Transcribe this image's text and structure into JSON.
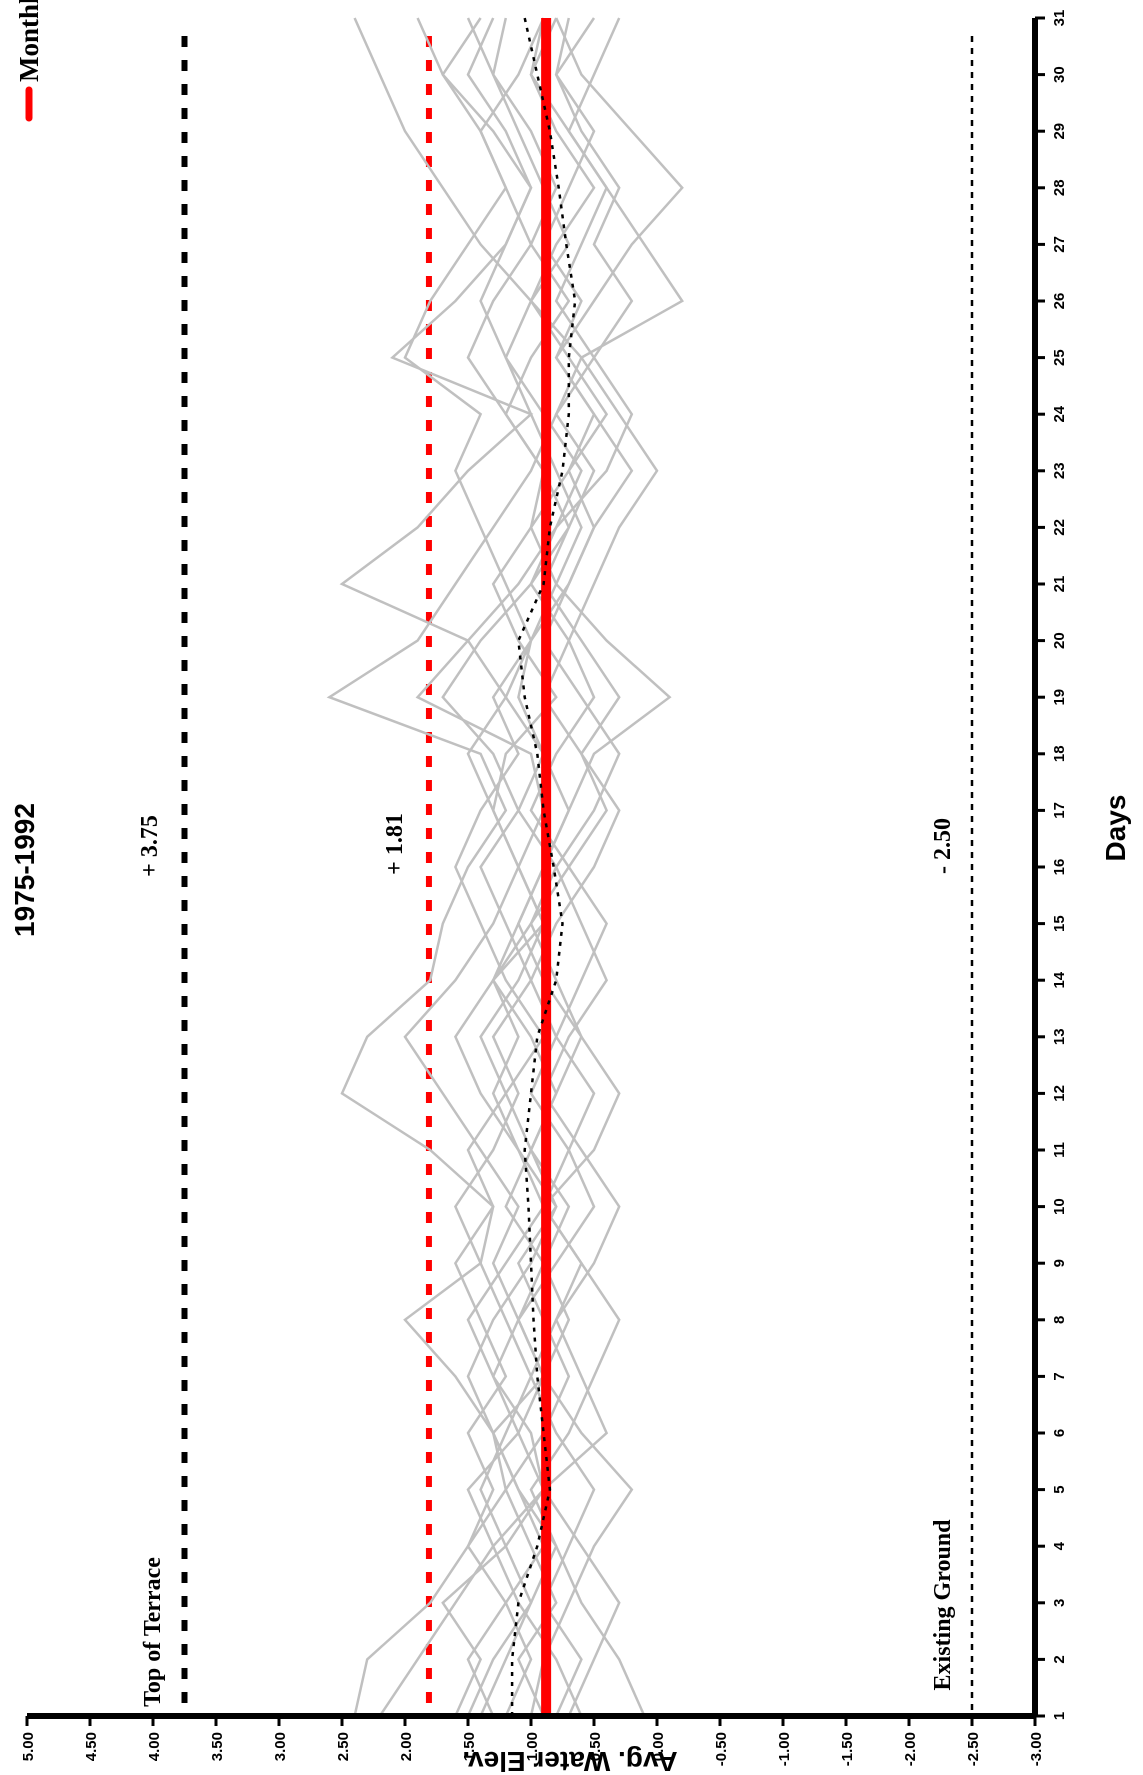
{
  "chart_data": {
    "type": "line",
    "title": "1975-1992",
    "xlabel": "Days",
    "ylabel": "Avg. Water Elev.",
    "x": [
      1,
      2,
      3,
      4,
      5,
      6,
      7,
      8,
      9,
      10,
      11,
      12,
      13,
      14,
      15,
      16,
      17,
      18,
      19,
      20,
      21,
      22,
      23,
      24,
      25,
      26,
      27,
      28,
      29,
      30,
      31
    ],
    "ylim": [
      -3.0,
      5.0
    ],
    "xlim": [
      1,
      31
    ],
    "y_ticks": [
      "5.00",
      "4.50",
      "4.00",
      "3.50",
      "3.00",
      "2.50",
      "2.00",
      "1.50",
      "1.00",
      "0.50",
      "0.00",
      "-0.50",
      "-1.00",
      "-1.50",
      "-2.00",
      "-2.50",
      "-3.00"
    ],
    "x_ticks": [
      "1",
      "2",
      "3",
      "4",
      "5",
      "6",
      "7",
      "8",
      "9",
      "10",
      "11",
      "12",
      "13",
      "14",
      "15",
      "16",
      "17",
      "18",
      "19",
      "20",
      "21",
      "22",
      "23",
      "24",
      "25",
      "26",
      "27",
      "28",
      "29",
      "30",
      "31"
    ],
    "grid": false,
    "legend": "top-right",
    "series": [
      {
        "name": "Monthly Average",
        "color": "#ff0000",
        "style": "solid-thick",
        "values": [
          0.88,
          0.88,
          0.88,
          0.88,
          0.88,
          0.88,
          0.88,
          0.88,
          0.88,
          0.88,
          0.88,
          0.88,
          0.88,
          0.88,
          0.88,
          0.88,
          0.88,
          0.88,
          0.88,
          0.88,
          0.88,
          0.88,
          0.88,
          0.88,
          0.88,
          0.88,
          0.88,
          0.88,
          0.88,
          0.88,
          0.88
        ]
      },
      {
        "color": "#000000",
        "style": "dotted",
        "values": [
          1.15,
          1.15,
          1.1,
          0.95,
          0.85,
          0.9,
          0.95,
          0.98,
          1.0,
          1.02,
          1.05,
          1.0,
          0.95,
          0.8,
          0.75,
          0.82,
          0.9,
          0.95,
          1.05,
          1.1,
          0.9,
          0.85,
          0.75,
          0.7,
          0.7,
          0.65,
          0.72,
          0.78,
          0.85,
          0.95,
          1.05
        ]
      },
      {
        "color": "#c0c0c0",
        "values": [
          2.4,
          2.3,
          1.8,
          1.5,
          1.2,
          1.3,
          1.6,
          2.0,
          1.4,
          1.3,
          1.8,
          2.5,
          2.3,
          1.8,
          1.7,
          1.5,
          1.2,
          1.4,
          2.6,
          1.9,
          1.6,
          1.3,
          1.0,
          0.8,
          0.6,
          1.0,
          1.4,
          1.7,
          2.0,
          2.2,
          2.4
        ]
      },
      {
        "color": "#c0c0c0",
        "values": [
          2.2,
          1.9,
          1.6,
          1.3,
          1.5,
          1.1,
          0.9,
          1.1,
          1.3,
          1.1,
          1.4,
          1.7,
          2.0,
          1.6,
          1.3,
          1.1,
          0.9,
          1.0,
          1.9,
          1.5,
          2.5,
          1.9,
          1.5,
          1.0,
          2.1,
          1.6,
          1.2,
          1.0,
          1.3,
          1.7,
          1.9
        ]
      },
      {
        "color": "#c0c0c0",
        "values": [
          1.6,
          1.4,
          1.7,
          1.2,
          0.9,
          1.0,
          1.3,
          1.5,
          1.2,
          0.9,
          1.1,
          1.4,
          1.6,
          1.3,
          1.0,
          0.8,
          1.1,
          1.3,
          1.7,
          1.4,
          1.0,
          0.7,
          0.9,
          1.2,
          1.5,
          1.3,
          1.0,
          0.8,
          1.0,
          1.3,
          1.5
        ]
      },
      {
        "color": "#c0c0c0",
        "values": [
          1.4,
          1.2,
          1.0,
          0.8,
          1.1,
          1.3,
          0.9,
          0.7,
          0.9,
          1.2,
          1.0,
          0.8,
          1.0,
          1.3,
          1.1,
          0.9,
          0.7,
          0.9,
          1.2,
          1.5,
          1.1,
          0.8,
          0.6,
          0.9,
          1.2,
          1.0,
          0.7,
          0.9,
          1.1,
          1.3,
          1.2
        ]
      },
      {
        "color": "#c0c0c0",
        "values": [
          1.0,
          0.9,
          0.7,
          0.5,
          0.2,
          0.6,
          0.9,
          1.1,
          0.8,
          0.5,
          0.7,
          1.0,
          0.8,
          0.6,
          0.4,
          0.7,
          1.0,
          0.8,
          0.5,
          0.7,
          1.0,
          0.8,
          0.4,
          0.2,
          0.5,
          0.8,
          0.6,
          0.4,
          0.7,
          1.0,
          0.9
        ]
      },
      {
        "color": "#c0c0c0",
        "values": [
          0.7,
          0.5,
          0.3,
          0.6,
          0.9,
          0.4,
          0.6,
          0.8,
          0.5,
          0.3,
          0.6,
          0.9,
          0.7,
          0.4,
          0.6,
          0.8,
          0.5,
          0.3,
          0.6,
          0.9,
          0.7,
          0.5,
          0.2,
          0.5,
          0.8,
          0.6,
          0.9,
          0.7,
          0.5,
          0.8,
          0.7
        ]
      },
      {
        "color": "#c0c0c0",
        "values": [
          0.1,
          0.3,
          0.6,
          0.8,
          1.0,
          0.7,
          0.5,
          0.3,
          0.6,
          0.9,
          0.5,
          0.3,
          0.6,
          0.8,
          1.0,
          0.7,
          0.4,
          0.6,
          0.3,
          0.6,
          0.9,
          0.7,
          0.5,
          0.8,
          0.5,
          0.2,
          0.5,
          0.3,
          0.6,
          0.8,
          0.5
        ]
      },
      {
        "color": "#c0c0c0",
        "values": [
          0.6,
          0.8,
          1.1,
          1.3,
          0.9,
          1.1,
          1.3,
          1.1,
          0.9,
          0.7,
          1.0,
          1.2,
          1.4,
          1.1,
          0.9,
          1.1,
          1.3,
          1.2,
          0.8,
          1.1,
          1.3,
          1.0,
          0.9,
          1.2,
          1.0,
          0.7,
          1.0,
          1.2,
          1.4,
          1.1,
          0.9
        ]
      },
      {
        "color": "#c0c0c0",
        "values": [
          1.5,
          1.3,
          1.0,
          1.2,
          1.4,
          1.2,
          1.0,
          1.2,
          1.4,
          1.6,
          1.3,
          1.1,
          1.3,
          1.0,
          1.2,
          1.4,
          1.1,
          0.9,
          1.1,
          1.0,
          0.8,
          0.6,
          0.8,
          1.0,
          1.2,
          1.4,
          1.2,
          1.0,
          1.2,
          1.5,
          1.3
        ]
      },
      {
        "color": "#c0c0c0",
        "values": [
          0.8,
          0.6,
          0.9,
          0.7,
          0.5,
          0.8,
          1.0,
          0.8,
          0.6,
          0.9,
          0.7,
          0.5,
          0.8,
          1.0,
          0.8,
          0.5,
          0.3,
          0.6,
          0.9,
          0.7,
          0.5,
          0.3,
          0.0,
          0.3,
          0.6,
          -0.2,
          0.1,
          0.4,
          0.7,
          0.5,
          0.3
        ]
      },
      {
        "color": "#c0c0c0",
        "values": [
          1.2,
          1.0,
          1.2,
          1.5,
          1.3,
          1.5,
          1.2,
          1.4,
          1.6,
          1.3,
          1.5,
          1.2,
          0.9,
          1.2,
          1.4,
          1.6,
          1.4,
          1.1,
          1.3,
          1.0,
          0.7,
          0.5,
          0.7,
          0.4,
          0.7,
          1.0,
          0.8,
          0.5,
          0.8,
          1.0,
          0.8
        ]
      },
      {
        "color": "#c0c0c0",
        "values": [
          0.9,
          1.1,
          0.8,
          1.0,
          1.2,
          0.9,
          0.7,
          0.9,
          1.1,
          0.8,
          1.0,
          0.8,
          0.6,
          0.9,
          1.1,
          0.9,
          0.7,
          0.5,
          -0.1,
          0.4,
          0.8,
          1.0,
          0.7,
          0.5,
          0.8,
          0.5,
          0.2,
          -0.2,
          0.2,
          0.6,
          0.8
        ]
      },
      {
        "color": "#c0c0c0",
        "values": [
          1.3,
          1.5,
          1.2,
          0.9,
          1.1,
          1.3,
          1.5,
          1.3,
          1.0,
          0.8,
          1.1,
          1.3,
          1.1,
          1.3,
          0.9,
          1.1,
          1.3,
          1.5,
          1.2,
          1.0,
          1.2,
          1.4,
          1.6,
          1.4,
          2.0,
          1.8,
          1.5,
          1.2,
          1.4,
          1.7,
          1.4
        ]
      }
    ],
    "annotations": [
      {
        "text": "+ 3.75",
        "y": 3.75,
        "line_color": "#000000"
      },
      {
        "text": "+ 1.81",
        "y": 1.81,
        "line_color": "#ff0000"
      },
      {
        "text": "- 2.50",
        "y": -2.5,
        "line_color": "#000000"
      },
      {
        "text": "Top of Terrace",
        "y": 3.75
      },
      {
        "text": "Existing Ground",
        "y": -2.5
      }
    ]
  }
}
